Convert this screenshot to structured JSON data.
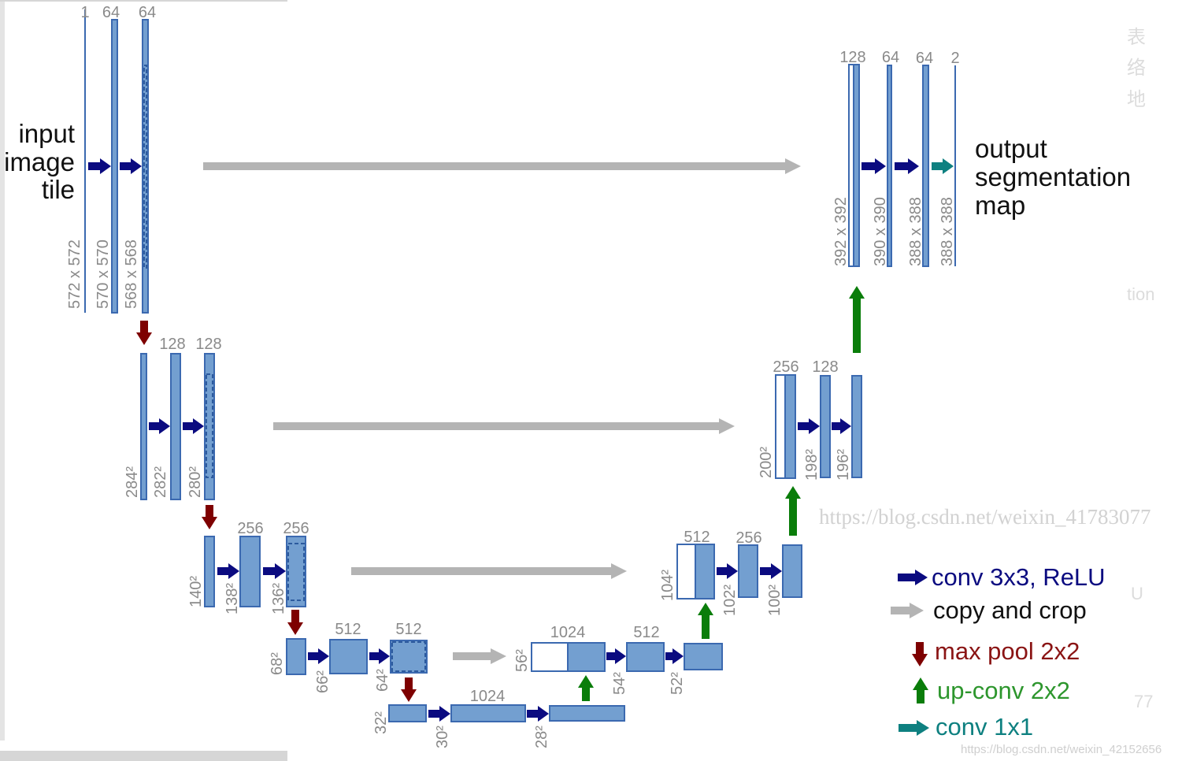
{
  "colors": {
    "block_fill": "#739fd0",
    "block_stroke": "#3b69b0",
    "conv": "#0b0b80",
    "copy": "#b4b4b4",
    "maxpool": "#7e0000",
    "upconv": "#0a7d0a",
    "conv1x1": "#0e8080",
    "label": "#8a8a8a"
  },
  "input_label": [
    "input",
    "image",
    "tile"
  ],
  "output_label": [
    "output",
    "segmentation",
    "map"
  ],
  "channel_labels": [
    "1",
    "64",
    "64",
    "128",
    "128",
    "256",
    "256",
    "512",
    "512",
    "1024",
    "1024",
    "512",
    "512",
    "256",
    "256",
    "128",
    "128",
    "64",
    "64",
    "2"
  ],
  "size_labels": [
    "572 x 572",
    "570 x 570",
    "568 x 568",
    "284²",
    "282²",
    "280²",
    "140²",
    "138²",
    "136²",
    "68²",
    "66²",
    "64²",
    "32²",
    "30²",
    "28²",
    "56²",
    "54²",
    "52²",
    "104²",
    "102²",
    "100²",
    "200²",
    "198²",
    "196²",
    "392 x 392",
    "390 x 390",
    "388 x 388",
    "388 x 388"
  ],
  "legend": [
    {
      "icon": "conv-arrow-icon",
      "label": "conv 3x3, ReLU"
    },
    {
      "icon": "copy-arrow-icon",
      "label": "copy and crop"
    },
    {
      "icon": "maxpool-arrow-icon",
      "label": "max pool 2x2"
    },
    {
      "icon": "upconv-arrow-icon",
      "label": "up-conv 2x2"
    },
    {
      "icon": "conv1x1-arrow-icon",
      "label": "conv 1x1"
    }
  ],
  "watermarks": [
    "https://blog.csdn.net/weixin_41783077",
    "https://blog.csdn.net/weixin_42152656"
  ],
  "side_fragments": [
    "表",
    "络",
    "地",
    "tion",
    "U",
    "77"
  ]
}
